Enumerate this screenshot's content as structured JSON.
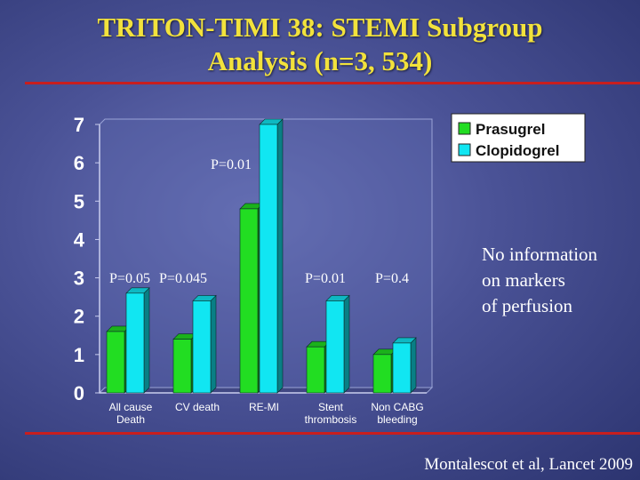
{
  "title": {
    "line1": "TRITON-TIMI 38: STEMI Subgroup",
    "line2": "Analysis (n=3, 534)"
  },
  "note": {
    "line1": "No information",
    "line2": "on markers",
    "line3": "of perfusion"
  },
  "citation": "Montalescot et al, Lancet 2009",
  "colors": {
    "title": "#f2e23c",
    "rule": "#c81e1e",
    "prasugrel": "#22dd22",
    "clopidogrel": "#11e6f2"
  },
  "chart_data": {
    "type": "bar",
    "categories": [
      [
        "All cause",
        "Death"
      ],
      [
        "CV death"
      ],
      [
        "RE-MI"
      ],
      [
        "Stent",
        "thrombosis"
      ],
      [
        "Non CABG",
        "bleeding"
      ]
    ],
    "series": [
      {
        "name": "Prasugrel",
        "values": [
          1.6,
          1.4,
          4.8,
          1.2,
          1.0
        ]
      },
      {
        "name": "Clopidogrel",
        "values": [
          2.6,
          2.4,
          7.0,
          2.4,
          1.3
        ]
      }
    ],
    "annotations": [
      "P=0.05",
      "P=0.045",
      "P=0.01",
      "P=0.01",
      "P=0.4"
    ],
    "yticks": [
      "0",
      "1",
      "2",
      "3",
      "4",
      "5",
      "6",
      "7"
    ],
    "ylim": [
      0,
      7
    ],
    "legend_position": "top-right",
    "grid": false,
    "style": "3d"
  }
}
